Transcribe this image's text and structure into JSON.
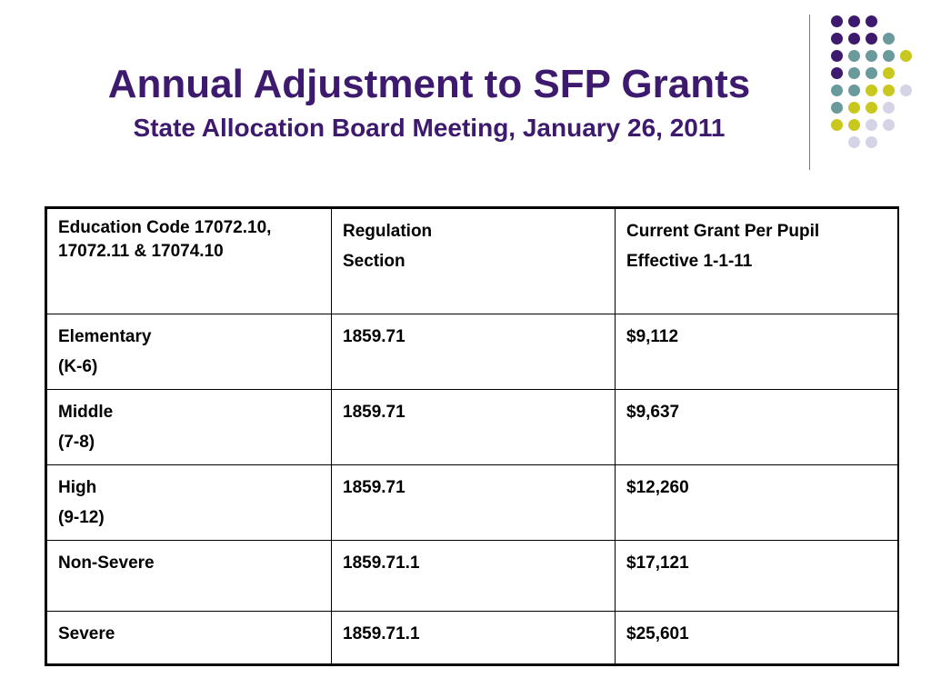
{
  "slide": {
    "title": "Annual Adjustment to SFP Grants",
    "subtitle": "State Allocation Board Meeting, January 26, 2011",
    "colors": {
      "title": "#3d1a6e",
      "dot_purple": "#3d1a6e",
      "dot_teal": "#6a9a9c",
      "dot_yellow": "#c8c81e",
      "dot_lavender": "#d4d4e6"
    }
  },
  "table": {
    "header": {
      "col1": [
        "Education Code 17072.10, 17072.11 & 17074.10"
      ],
      "col2": [
        "Regulation",
        "Section"
      ],
      "col3": [
        "Current Grant Per Pupil",
        "Effective 1-1-11"
      ]
    },
    "rows": [
      {
        "level": "Elementary",
        "grades": "(K-6)",
        "section": "1859.71",
        "grant": "$9,112"
      },
      {
        "level": "Middle",
        "grades": "(7-8)",
        "section": "1859.71",
        "grant": "$9,637"
      },
      {
        "level": "High",
        "grades": "(9-12)",
        "section": "1859.71",
        "grant": "$12,260"
      },
      {
        "level": "Non-Severe",
        "grades": "",
        "section": "1859.71.1",
        "grant": "$17,121"
      },
      {
        "level": "Severe",
        "grades": "",
        "section": "1859.71.1",
        "grant": "$25,601"
      }
    ]
  }
}
